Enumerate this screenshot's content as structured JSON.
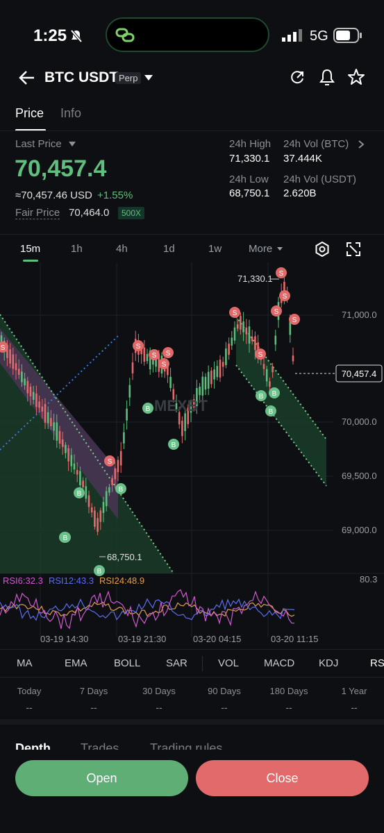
{
  "status_bar": {
    "time": "1:25",
    "network": "5G"
  },
  "header": {
    "title": "BTC USDT",
    "badge": "Perp"
  },
  "tabs": [
    {
      "label": "Price"
    },
    {
      "label": "Info"
    }
  ],
  "price": {
    "last_price_label": "Last Price",
    "value": "70,457.4",
    "usd": "≈70,457.46 USD",
    "change": "+1.55%",
    "fair_label": "Fair Price",
    "fair_value": "70,464.0",
    "leverage": "500X"
  },
  "stats": {
    "high_label": "24h High",
    "high_value": "71,330.1",
    "vol_btc_label": "24h Vol (BTC)",
    "vol_btc_value": "37.444K",
    "low_label": "24h Low",
    "low_value": "68,750.1",
    "vol_usdt_label": "24h Vol (USDT)",
    "vol_usdt_value": "2.620B"
  },
  "timeframes": [
    "15m",
    "1h",
    "4h",
    "1d",
    "1w",
    "More"
  ],
  "chart": {
    "y_labels": [
      "71,000.0",
      "70,000.0",
      "69,500.0",
      "69,000.0"
    ],
    "current_price": "70,457.4",
    "high_marker": "71,330.1",
    "low_marker": "68,750.1",
    "watermark": "MEXBT",
    "rsi": {
      "r6": "RSI6:32.3",
      "r12": "RSI12:43.3",
      "r24": "RSI24:48.9",
      "top": "80.3"
    },
    "x_labels": [
      "03-19 14:30",
      "03-19 21:30",
      "03-20 04:15",
      "03-20 11:15"
    ],
    "sell_marker": "S",
    "buy_marker": "B"
  },
  "indicators": [
    "MA",
    "EMA",
    "BOLL",
    "SAR",
    "VOL",
    "MACD",
    "KDJ",
    "RSI"
  ],
  "performance": [
    {
      "label": "Today",
      "value": "--"
    },
    {
      "label": "7 Days",
      "value": "--"
    },
    {
      "label": "30 Days",
      "value": "--"
    },
    {
      "label": "90 Days",
      "value": "--"
    },
    {
      "label": "180 Days",
      "value": "--"
    },
    {
      "label": "1 Year",
      "value": "--"
    }
  ],
  "bottom_tabs": [
    "Depth",
    "Trades",
    "Trading rules"
  ],
  "actions": {
    "open": "Open",
    "close": "Close"
  },
  "colors": {
    "up": "#5fbf7f",
    "down": "#e86a6a",
    "open_bg": "#5fae75",
    "close_bg": "#e36a6a"
  }
}
